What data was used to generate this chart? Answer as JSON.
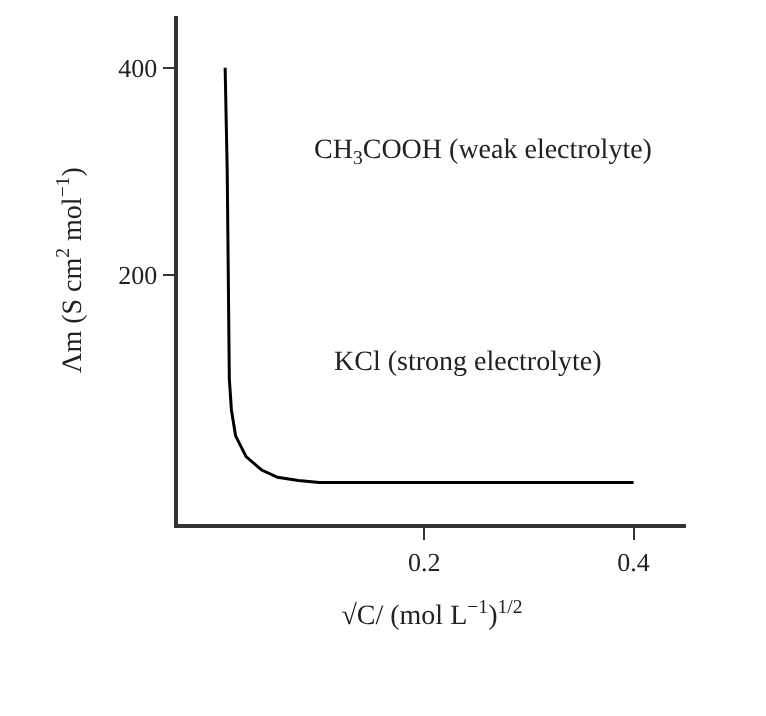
{
  "chart_data": {
    "type": "line",
    "xlabel": "√C/ (mol L$^{−1}$)$^{1/2}$",
    "ylabel": "Λm (S cm$^{2}$ mol$^{−1}$)",
    "x": [
      0.01,
      0.012,
      0.013,
      0.014,
      0.016,
      0.02,
      0.03,
      0.045,
      0.06,
      0.08,
      0.1,
      0.15,
      0.4
    ],
    "series": [
      {
        "color": "#000000",
        "values": [
          400,
          300,
          200,
          100,
          70,
          45,
          25,
          12,
          5,
          2,
          0,
          0,
          0
        ]
      }
    ],
    "xlim": [
      -0.035,
      0.45
    ],
    "xticks": [
      0.2,
      0.4
    ],
    "ylim": [
      -40,
      450
    ],
    "yticks": [
      200,
      400
    ],
    "annotations": [
      "CH$_{3}$COOH (weak electrolyte)",
      "KCl (strong electrolyte)"
    ],
    "marker": "none",
    "line_style": "solid"
  }
}
